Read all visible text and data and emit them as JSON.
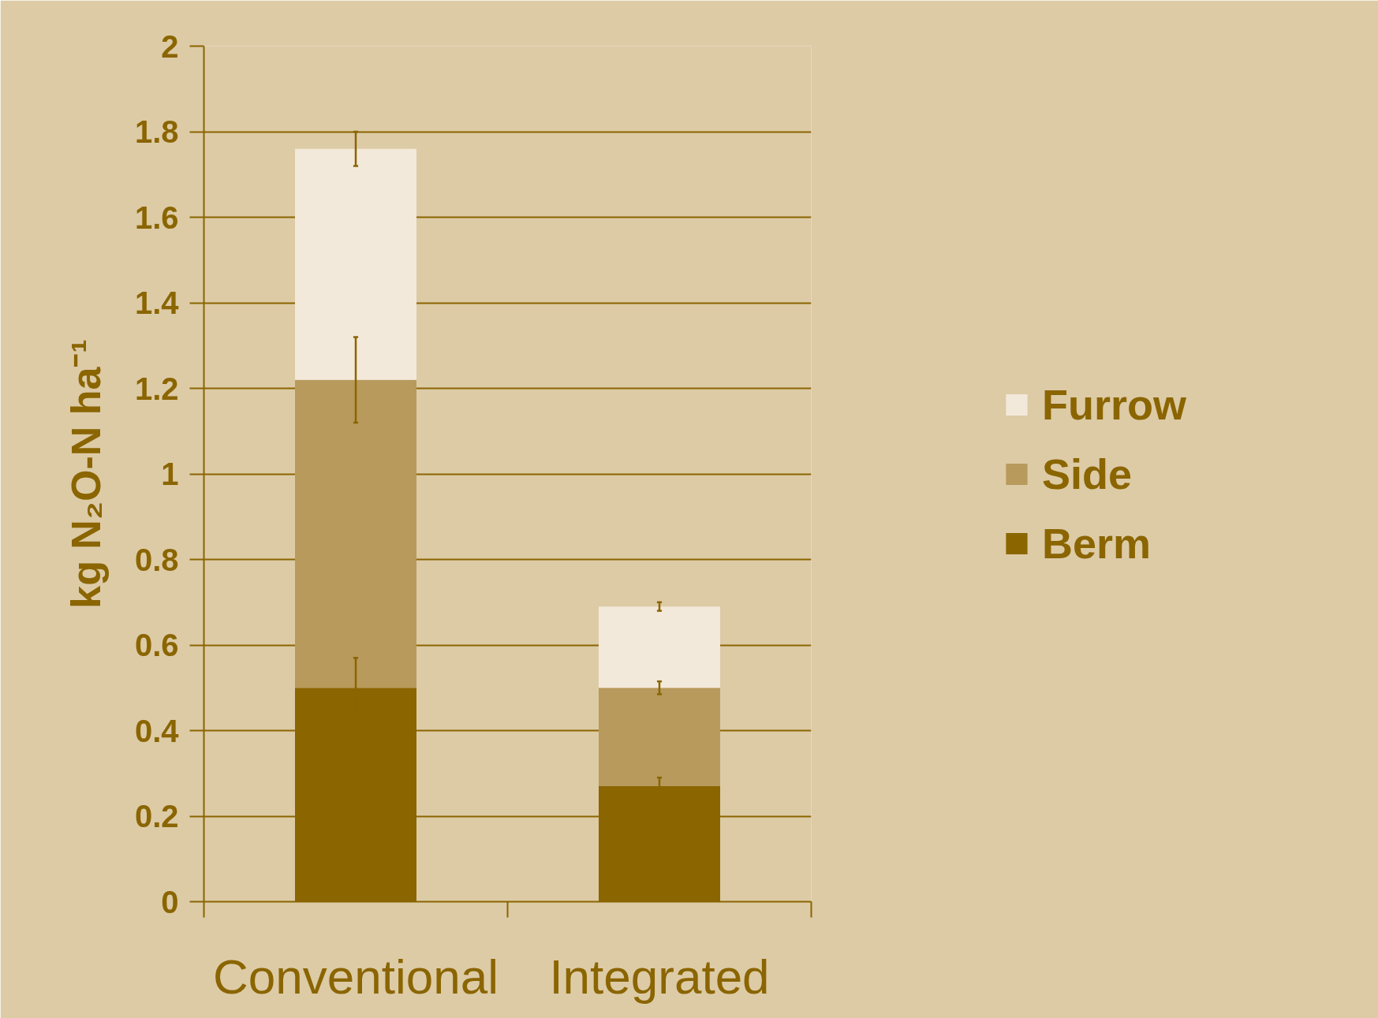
{
  "chart_data": {
    "type": "bar",
    "stacked": true,
    "ylabel": "kg N₂O-N ha⁻¹",
    "categories": [
      "Conventional",
      "Integrated"
    ],
    "series": [
      {
        "name": "Berm",
        "color": "#8a6500",
        "values": [
          0.5,
          0.27
        ],
        "errors": [
          0.07,
          0.02
        ]
      },
      {
        "name": "Side",
        "color": "#b89a5c",
        "values": [
          0.72,
          0.23
        ],
        "errors": [
          0.1,
          0.015
        ]
      },
      {
        "name": "Furrow",
        "color": "#f3e9da",
        "values": [
          0.54,
          0.19
        ],
        "errors": [
          0.04,
          0.01
        ]
      }
    ],
    "ylim": [
      0,
      2
    ],
    "yticks": [
      0,
      0.2,
      0.4,
      0.6,
      0.8,
      1,
      1.2,
      1.4,
      1.6,
      1.8,
      2
    ],
    "grid": "y",
    "legend": "right"
  }
}
